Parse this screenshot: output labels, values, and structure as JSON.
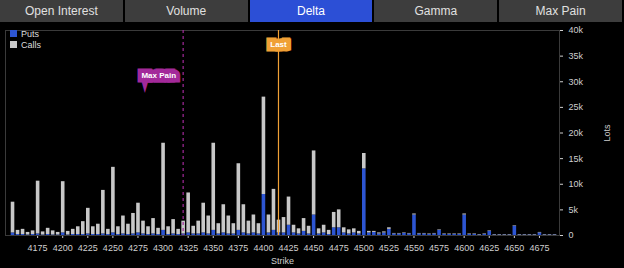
{
  "header": {
    "tabs": [
      "Open Interest",
      "Volume",
      "Delta",
      "Gamma",
      "Max Pain"
    ],
    "selected_tab": "Delta"
  },
  "chart_data": {
    "type": "bar",
    "stacked": true,
    "grid": false,
    "legend": "top-left",
    "x_label": "Strike",
    "y_label": "Lots",
    "x": [
      4150,
      4155,
      4160,
      4165,
      4170,
      4175,
      4180,
      4185,
      4190,
      4195,
      4200,
      4205,
      4210,
      4215,
      4220,
      4225,
      4230,
      4235,
      4240,
      4245,
      4250,
      4255,
      4260,
      4265,
      4270,
      4275,
      4280,
      4285,
      4290,
      4295,
      4300,
      4305,
      4310,
      4315,
      4320,
      4325,
      4330,
      4335,
      4340,
      4345,
      4350,
      4355,
      4360,
      4365,
      4370,
      4375,
      4380,
      4385,
      4390,
      4395,
      4400,
      4405,
      4410,
      4415,
      4420,
      4425,
      4430,
      4435,
      4440,
      4445,
      4450,
      4455,
      4460,
      4465,
      4470,
      4475,
      4480,
      4485,
      4490,
      4495,
      4500,
      4505,
      4510,
      4515,
      4520,
      4525,
      4530,
      4535,
      4540,
      4545,
      4550,
      4555,
      4560,
      4565,
      4570,
      4575,
      4580,
      4585,
      4590,
      4595,
      4600,
      4605,
      4610,
      4615,
      4620,
      4625,
      4630,
      4635,
      4640,
      4645,
      4650,
      4655,
      4660,
      4665,
      4670,
      4675,
      4680,
      4685,
      4690
    ],
    "series": [
      {
        "name": "Puts",
        "color": "#2d55d2",
        "values": [
          500,
          200,
          200,
          100,
          200,
          300,
          100,
          200,
          100,
          100,
          500,
          100,
          200,
          200,
          200,
          300,
          200,
          200,
          300,
          200,
          500,
          200,
          300,
          200,
          300,
          500,
          300,
          200,
          300,
          200,
          1000,
          200,
          300,
          200,
          300,
          500,
          300,
          300,
          500,
          300,
          1000,
          300,
          500,
          300,
          300,
          1000,
          500,
          300,
          500,
          300,
          8000,
          500,
          1000,
          500,
          500,
          2000,
          500,
          300,
          800,
          300,
          4000,
          300,
          500,
          200,
          1500,
          1500,
          500,
          300,
          500,
          300,
          13000,
          500,
          600,
          300,
          500,
          1200,
          300,
          300,
          400,
          300,
          4000,
          300,
          300,
          200,
          300,
          1000,
          200,
          200,
          200,
          200,
          4000,
          200,
          200,
          100,
          200,
          800,
          100,
          100,
          100,
          100,
          1800,
          100,
          100,
          100,
          100,
          500,
          100,
          100,
          100
        ]
      },
      {
        "name": "Calls",
        "color": "#c8c8c8",
        "values": [
          6000,
          800,
          1000,
          500,
          700,
          10300,
          600,
          1200,
          800,
          500,
          10000,
          700,
          1000,
          1500,
          2500,
          5000,
          1500,
          2000,
          8500,
          1000,
          12800,
          1500,
          3500,
          2000,
          4000,
          5800,
          2500,
          1500,
          3000,
          1200,
          17000,
          1500,
          2800,
          1000,
          2500,
          7800,
          1500,
          2500,
          5800,
          3500,
          17000,
          2000,
          5500,
          3500,
          2000,
          13000,
          5500,
          2500,
          3500,
          2000,
          19000,
          3500,
          8000,
          2500,
          3000,
          5500,
          1500,
          1000,
          2500,
          1500,
          12500,
          1000,
          1500,
          800,
          3000,
          3500,
          1000,
          800,
          800,
          500,
          3000,
          300,
          200,
          200,
          200,
          300,
          100,
          100,
          100,
          100,
          200,
          100,
          100,
          100,
          100,
          100,
          100,
          100,
          100,
          100,
          200,
          100,
          100,
          100,
          100,
          100,
          100,
          100,
          100,
          100,
          100,
          100,
          100,
          100,
          100,
          100,
          100,
          100,
          100
        ]
      }
    ],
    "xlim": [
      4143,
      4695
    ],
    "xticks": [
      4175,
      4200,
      4225,
      4250,
      4275,
      4300,
      4325,
      4350,
      4375,
      4400,
      4425,
      4450,
      4475,
      4500,
      4525,
      4550,
      4575,
      4600,
      4625,
      4650,
      4675
    ],
    "ylim": [
      0,
      40000
    ],
    "yticks": [
      0,
      {
        "value": 5000,
        "label": "5k"
      },
      {
        "value": 10000,
        "label": "10k"
      },
      {
        "value": 15000,
        "label": "15k"
      },
      {
        "value": 20000,
        "label": "20k"
      },
      {
        "value": 25000,
        "label": "25k"
      },
      {
        "value": 30000,
        "label": "30k"
      },
      {
        "value": 35000,
        "label": "35k"
      },
      {
        "value": 40000,
        "label": "40k"
      }
    ],
    "annotations": [
      {
        "text": "Max Pain",
        "x": 4320,
        "color": "#a3299a",
        "line_style": "dashed"
      },
      {
        "text": "Last",
        "x": 4415,
        "color": "#f0a035",
        "line_style": "solid"
      }
    ]
  }
}
